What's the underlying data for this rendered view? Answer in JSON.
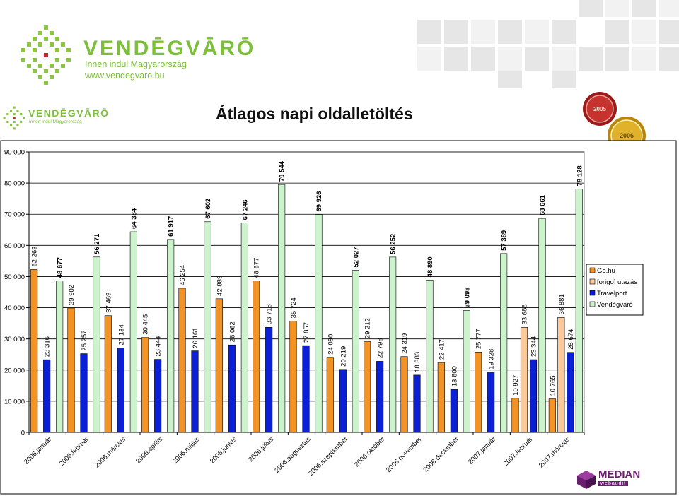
{
  "header": {
    "logo_big": {
      "brand": "VENDĒGVĀRŌ",
      "tagline": "Innen indul Magyarország",
      "url": "www.vendegvaro.hu"
    },
    "logo_small": {
      "brand": "VENDĒGVĀRŌ",
      "tagline": "Innen indul Magyarország"
    },
    "medals": [
      "2005",
      "2006"
    ],
    "footer_logo": {
      "name": "MEDIAN",
      "sub": "webaudit"
    }
  },
  "colors": {
    "go": "#f39325",
    "origo": "#fcc99a",
    "travelport": "#0a1fd6",
    "vendegvaro": "#ccf3cc",
    "brand_green": "#7bbf3a",
    "median_purple": "#6a1f6e"
  },
  "chart_data": {
    "type": "bar",
    "title": "Átlagos napi oldalletöltés",
    "xlabel": "",
    "ylabel": "",
    "ylim": [
      0,
      90000
    ],
    "yticks": [
      "0",
      "10 000",
      "20 000",
      "30 000",
      "40 000",
      "50 000",
      "60 000",
      "70 000",
      "80 000",
      "90 000"
    ],
    "grid": true,
    "legend_position": "right",
    "categories": [
      "2006.január",
      "2006.február",
      "2006.március",
      "2006.április",
      "2006.május",
      "2006.június",
      "2006.július",
      "2006.augusztus",
      "2006.szeptember",
      "2006.október",
      "2006.november",
      "2006.december",
      "2007.január",
      "2007.február",
      "2007.március"
    ],
    "series": [
      {
        "name": "Go.hu",
        "color": "#f39325",
        "values": [
          52263,
          39902,
          37469,
          30445,
          46254,
          42889,
          48577,
          35724,
          24090,
          29212,
          24319,
          22417,
          25777,
          10927,
          10765
        ],
        "labels": [
          "52 263",
          "39 902",
          "37 469",
          "30 445",
          "46 254",
          "42 889",
          "48 577",
          "35 724",
          "24 090",
          "29 212",
          "24 319",
          "22 417",
          "25 777",
          "10 927",
          "10 765"
        ]
      },
      {
        "name": "[origo] utazás",
        "color": "#fcc99a",
        "values": [
          null,
          null,
          null,
          null,
          null,
          null,
          null,
          null,
          null,
          null,
          null,
          null,
          null,
          33688,
          36881
        ],
        "labels": [
          "",
          "",
          "",
          "",
          "",
          "",
          "",
          "",
          "",
          "",
          "",
          "",
          "",
          "33 688",
          "36 881"
        ]
      },
      {
        "name": "Travelport",
        "color": "#0a1fd6",
        "values": [
          23316,
          25257,
          27134,
          23444,
          26161,
          28062,
          33718,
          27857,
          20219,
          22798,
          18383,
          13800,
          19328,
          23344,
          25674
        ],
        "labels": [
          "23 316",
          "25 257",
          "27 134",
          "23 444",
          "26 161",
          "28 062",
          "33 718",
          "27 857",
          "20 219",
          "22 798",
          "18 383",
          "13 800",
          "19 328",
          "23 344",
          "25 674"
        ]
      },
      {
        "name": "Vendégváró",
        "color": "#ccf3cc",
        "values": [
          48677,
          56271,
          64384,
          61917,
          67602,
          67246,
          79544,
          69926,
          52027,
          56252,
          48890,
          39098,
          57389,
          68661,
          78128
        ],
        "labels": [
          "48 677",
          "56 271",
          "64 384",
          "61 917",
          "67 602",
          "67 246",
          "79 544",
          "69 926",
          "52 027",
          "56 252",
          "48 890",
          "39 098",
          "57 389",
          "68 661",
          "78 128"
        ]
      }
    ]
  }
}
